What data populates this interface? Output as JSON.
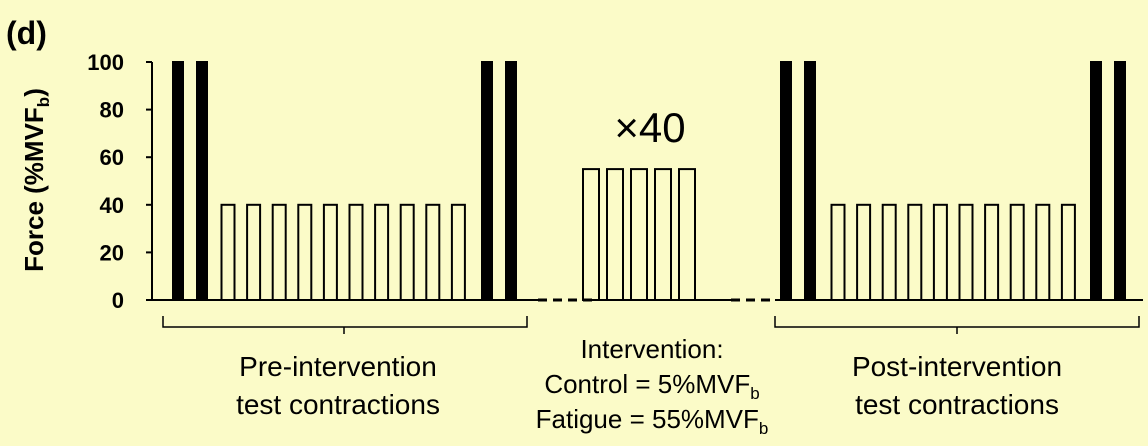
{
  "panel_label": "(d)",
  "y_axis": {
    "label_main": "Force (%MVF",
    "label_sub": "b",
    "label_end": ")",
    "ticks": [
      "0",
      "20",
      "40",
      "60",
      "80",
      "100"
    ]
  },
  "repeat_label": "×40",
  "groups": {
    "pre": {
      "line1": "Pre-intervention",
      "line2": "test contractions"
    },
    "intervention": {
      "title": "Intervention:",
      "control_main": "Control = 5%MVF",
      "control_sub": "b",
      "fatigue_main": "Fatigue = 55%MVF",
      "fatigue_sub": "b"
    },
    "post": {
      "line1": "Post-intervention",
      "line2": "test contractions"
    }
  },
  "chart_data": {
    "type": "bar",
    "ylabel": "Force (%MVFb)",
    "ylim": [
      0,
      100
    ],
    "yticks": [
      0,
      20,
      40,
      60,
      80,
      100
    ],
    "segments": [
      {
        "name": "pre-max",
        "fill": "solid",
        "count": 2,
        "value": 100
      },
      {
        "name": "pre-test",
        "fill": "outline",
        "count": 10,
        "value": 40
      },
      {
        "name": "pre-max-end",
        "fill": "solid",
        "count": 2,
        "value": 100
      },
      {
        "name": "intervention",
        "fill": "outline",
        "count": 5,
        "value": 55,
        "repeat": 40
      },
      {
        "name": "post-max",
        "fill": "solid",
        "count": 2,
        "value": 100
      },
      {
        "name": "post-test",
        "fill": "outline",
        "count": 10,
        "value": 40
      },
      {
        "name": "post-max-end",
        "fill": "solid",
        "count": 2,
        "value": 100
      }
    ]
  }
}
